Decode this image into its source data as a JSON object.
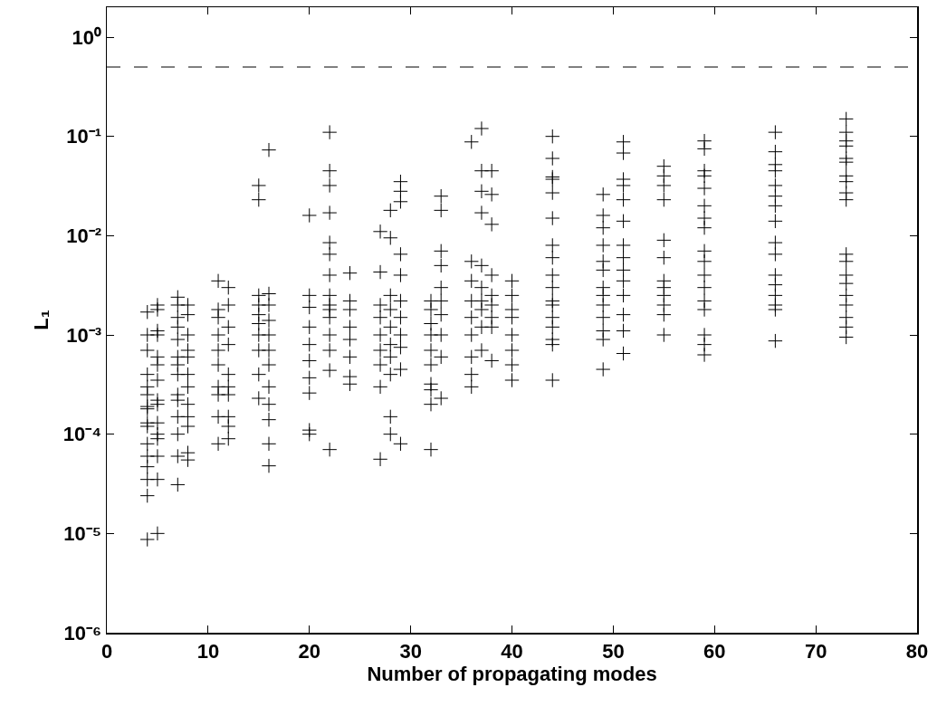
{
  "chart_data": {
    "type": "scatter",
    "xlabel": "Number of propagating modes",
    "ylabel": "L₁",
    "log": "y",
    "marker": "cross",
    "grid": false,
    "xlim": [
      0,
      80
    ],
    "xticks": [
      0,
      10,
      20,
      30,
      40,
      50,
      60,
      70,
      80
    ],
    "ylim": [
      1e-06,
      2
    ],
    "yticks": [
      {
        "value": 1e-06,
        "label": "10⁻⁶"
      },
      {
        "value": 1e-05,
        "label": "10⁻⁵"
      },
      {
        "value": 0.0001,
        "label": "10⁻⁴"
      },
      {
        "value": 0.001,
        "label": "10⁻³"
      },
      {
        "value": 0.01,
        "label": "10⁻²"
      },
      {
        "value": 0.1,
        "label": "10⁻¹"
      },
      {
        "value": 1,
        "label": "10⁰"
      }
    ],
    "ref_lines": [
      {
        "axis": "y",
        "value": 0.5,
        "color": "#000000",
        "line_style": "dashed"
      }
    ],
    "series": [
      {
        "color": "#000000",
        "x": [
          4,
          4,
          4,
          4,
          4,
          4,
          4,
          4,
          4,
          4,
          4,
          4,
          4,
          4,
          4,
          4,
          5,
          5,
          5,
          5,
          5,
          5,
          5,
          5,
          5,
          5,
          5,
          5,
          5,
          5,
          5,
          7,
          7,
          7,
          7,
          7,
          7,
          7,
          7,
          7,
          7,
          7,
          7,
          7,
          7,
          8,
          8,
          8,
          8,
          8,
          8,
          8,
          8,
          8,
          8,
          8,
          8,
          11,
          11,
          11,
          11,
          11,
          11,
          11,
          11,
          11,
          11,
          12,
          12,
          12,
          12,
          12,
          12,
          12,
          12,
          12,
          12,
          15,
          15,
          15,
          15,
          15,
          15,
          15,
          15,
          15,
          15,
          16,
          16,
          16,
          16,
          16,
          16,
          16,
          16,
          16,
          16,
          16,
          16,
          20,
          20,
          20,
          20,
          20,
          20,
          20,
          20,
          20,
          20,
          22,
          22,
          22,
          22,
          22,
          22,
          22,
          22,
          22,
          22,
          22,
          22,
          22,
          22,
          22,
          24,
          24,
          24,
          24,
          24,
          24,
          24,
          24,
          27,
          27,
          27,
          27,
          27,
          27,
          27,
          27,
          27,
          28,
          28,
          28,
          28,
          28,
          28,
          28,
          28,
          28,
          28,
          29,
          29,
          29,
          29,
          29,
          29,
          29,
          29,
          29,
          29,
          29,
          32,
          32,
          32,
          32,
          32,
          32,
          32,
          32,
          32,
          32,
          33,
          33,
          33,
          33,
          33,
          33,
          33,
          33,
          33,
          33,
          36,
          36,
          36,
          36,
          36,
          36,
          36,
          36,
          36,
          37,
          37,
          37,
          37,
          37,
          37,
          37,
          37,
          37,
          37,
          38,
          38,
          38,
          38,
          38,
          38,
          38,
          38,
          38,
          40,
          40,
          40,
          40,
          40,
          40,
          40,
          40,
          44,
          44,
          44,
          44,
          44,
          44,
          44,
          44,
          44,
          44,
          44,
          44,
          44,
          44,
          44,
          44,
          44,
          49,
          49,
          49,
          49,
          49,
          49,
          49,
          49,
          49,
          49,
          49,
          49,
          49,
          51,
          51,
          51,
          51,
          51,
          51,
          51,
          51,
          51,
          51,
          51,
          51,
          51,
          51,
          55,
          55,
          55,
          55,
          55,
          55,
          55,
          55,
          55,
          55,
          55,
          55,
          59,
          59,
          59,
          59,
          59,
          59,
          59,
          59,
          59,
          59,
          59,
          59,
          59,
          59,
          59,
          59,
          59,
          66,
          66,
          66,
          66,
          66,
          66,
          66,
          66,
          66,
          66,
          66,
          66,
          66,
          66,
          66,
          66,
          73,
          73,
          73,
          73,
          73,
          73,
          73,
          73,
          73,
          73,
          73,
          73,
          73,
          73,
          73,
          73,
          73,
          73,
          73
        ],
        "values": [
          0.0017,
          0.001,
          0.0007,
          0.0004,
          0.0003,
          0.00025,
          0.00019,
          0.00018,
          0.00013,
          0.00012,
          8e-05,
          6e-05,
          4.7e-05,
          3.5e-05,
          2.4e-05,
          8.7e-06,
          0.002,
          0.0018,
          0.0011,
          0.001,
          0.0006,
          0.0005,
          0.00035,
          0.00022,
          0.0002,
          0.00013,
          0.0001,
          9e-05,
          6e-05,
          3.5e-05,
          1e-05,
          0.0024,
          0.002,
          0.0015,
          0.0012,
          0.0009,
          0.0006,
          0.0005,
          0.0004,
          0.00025,
          0.00022,
          0.00015,
          0.0001,
          6e-05,
          3.1e-05,
          0.002,
          0.0016,
          0.001,
          0.0007,
          0.0006,
          0.0004,
          0.0003,
          0.0002,
          0.00015,
          0.00012,
          6.5e-05,
          5.5e-05,
          0.0035,
          0.0018,
          0.0015,
          0.001,
          0.0007,
          0.0005,
          0.0003,
          0.00025,
          0.00015,
          8e-05,
          0.003,
          0.002,
          0.0012,
          0.0008,
          0.0004,
          0.0003,
          0.00025,
          0.00015,
          0.00012,
          9e-05,
          0.032,
          0.023,
          0.0025,
          0.002,
          0.0016,
          0.0013,
          0.001,
          0.0007,
          0.0004,
          0.00023,
          0.073,
          0.0026,
          0.002,
          0.0014,
          0.001,
          0.0007,
          0.0005,
          0.0003,
          0.0002,
          0.00014,
          8e-05,
          4.8e-05,
          0.016,
          0.0025,
          0.0019,
          0.0012,
          0.0008,
          0.00055,
          0.00037,
          0.00026,
          0.00011,
          0.0001,
          0.11,
          0.045,
          0.032,
          0.017,
          0.0085,
          0.0065,
          0.004,
          0.0025,
          0.002,
          0.0018,
          0.0015,
          0.001,
          0.0007,
          0.00044,
          7e-05,
          0.0042,
          0.0022,
          0.0018,
          0.0012,
          0.0009,
          0.0006,
          0.00038,
          0.00032,
          0.011,
          0.0043,
          0.002,
          0.0015,
          0.001,
          0.0007,
          0.0005,
          0.0003,
          5.6e-05,
          0.018,
          0.0095,
          0.0025,
          0.0018,
          0.0012,
          0.0008,
          0.0006,
          0.0004,
          0.00015,
          0.0001,
          0.035,
          0.028,
          0.022,
          0.0065,
          0.004,
          0.0022,
          0.0015,
          0.001,
          0.00075,
          0.00045,
          8e-05,
          0.0022,
          0.0018,
          0.0013,
          0.001,
          0.0007,
          0.0005,
          0.00032,
          0.00028,
          0.0002,
          7e-05,
          0.025,
          0.018,
          0.007,
          0.005,
          0.003,
          0.0022,
          0.0016,
          0.001,
          0.0006,
          0.00023,
          0.088,
          0.0055,
          0.0035,
          0.0022,
          0.0015,
          0.001,
          0.0006,
          0.0004,
          0.0003,
          0.12,
          0.045,
          0.028,
          0.017,
          0.005,
          0.003,
          0.0022,
          0.0018,
          0.0012,
          0.0007,
          0.045,
          0.026,
          0.013,
          0.004,
          0.0025,
          0.002,
          0.0015,
          0.0012,
          0.00055,
          0.0035,
          0.0025,
          0.0018,
          0.0015,
          0.001,
          0.0007,
          0.0005,
          0.00035,
          0.1,
          0.06,
          0.039,
          0.037,
          0.027,
          0.015,
          0.008,
          0.006,
          0.004,
          0.003,
          0.0022,
          0.002,
          0.0015,
          0.0012,
          0.0009,
          0.0008,
          0.00035,
          0.026,
          0.016,
          0.012,
          0.008,
          0.0055,
          0.0045,
          0.003,
          0.0025,
          0.002,
          0.0015,
          0.0011,
          0.0009,
          0.00045,
          0.088,
          0.068,
          0.037,
          0.032,
          0.023,
          0.014,
          0.008,
          0.006,
          0.0045,
          0.0035,
          0.0025,
          0.0016,
          0.0011,
          0.00065,
          0.05,
          0.04,
          0.032,
          0.023,
          0.009,
          0.006,
          0.0035,
          0.003,
          0.0025,
          0.002,
          0.0016,
          0.001,
          0.09,
          0.075,
          0.045,
          0.04,
          0.03,
          0.02,
          0.015,
          0.012,
          0.007,
          0.0055,
          0.004,
          0.003,
          0.0022,
          0.0018,
          0.001,
          0.0008,
          0.00063,
          0.11,
          0.07,
          0.052,
          0.045,
          0.032,
          0.025,
          0.02,
          0.014,
          0.0085,
          0.0065,
          0.004,
          0.0032,
          0.0025,
          0.002,
          0.0018,
          0.00087,
          0.15,
          0.11,
          0.09,
          0.08,
          0.06,
          0.055,
          0.04,
          0.035,
          0.027,
          0.023,
          0.0065,
          0.0055,
          0.004,
          0.0033,
          0.0025,
          0.002,
          0.0015,
          0.0012,
          0.00095
        ]
      }
    ]
  }
}
